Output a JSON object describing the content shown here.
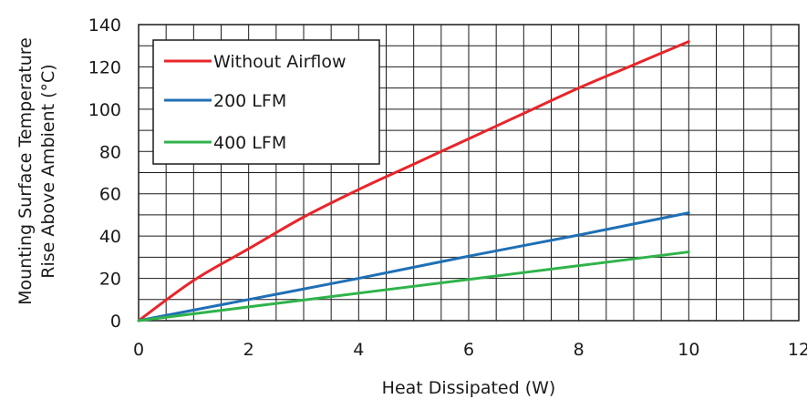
{
  "chart_data": {
    "type": "line",
    "xlabel": "Heat Dissipated (W)",
    "ylabel_lines": [
      "Mounting Surface Temperature",
      "Rise Above  Ambient (°C)"
    ],
    "xlim": [
      0,
      12
    ],
    "ylim": [
      0,
      140
    ],
    "x_ticks": [
      0,
      2,
      4,
      6,
      8,
      10,
      12
    ],
    "x_tick_labels": [
      "0",
      "2",
      "4",
      "6",
      "8",
      "10",
      "12"
    ],
    "y_ticks": [
      0,
      20,
      40,
      60,
      80,
      100,
      120,
      140
    ],
    "y_tick_labels": [
      "0",
      "20",
      "40",
      "60",
      "80",
      "100",
      "120",
      "140"
    ],
    "grid": true,
    "legend_position": "top-left",
    "series": [
      {
        "name": "Without Airflow",
        "color": "#e8252a",
        "x": [
          0,
          1,
          2,
          3,
          4,
          5,
          6,
          7,
          8,
          9,
          10
        ],
        "y": [
          0,
          19,
          34,
          49,
          62,
          74,
          86,
          98,
          110,
          121,
          132
        ]
      },
      {
        "name": "200 LFM",
        "color": "#1f6fb5",
        "x": [
          0,
          2,
          4,
          6,
          8,
          10
        ],
        "y": [
          0,
          10,
          20,
          30.5,
          40.5,
          51
        ]
      },
      {
        "name": "400 LFM",
        "color": "#2fb34a",
        "x": [
          0,
          2,
          4,
          6,
          8,
          10
        ],
        "y": [
          0,
          6.5,
          13,
          19.5,
          26,
          32.5
        ]
      }
    ]
  }
}
